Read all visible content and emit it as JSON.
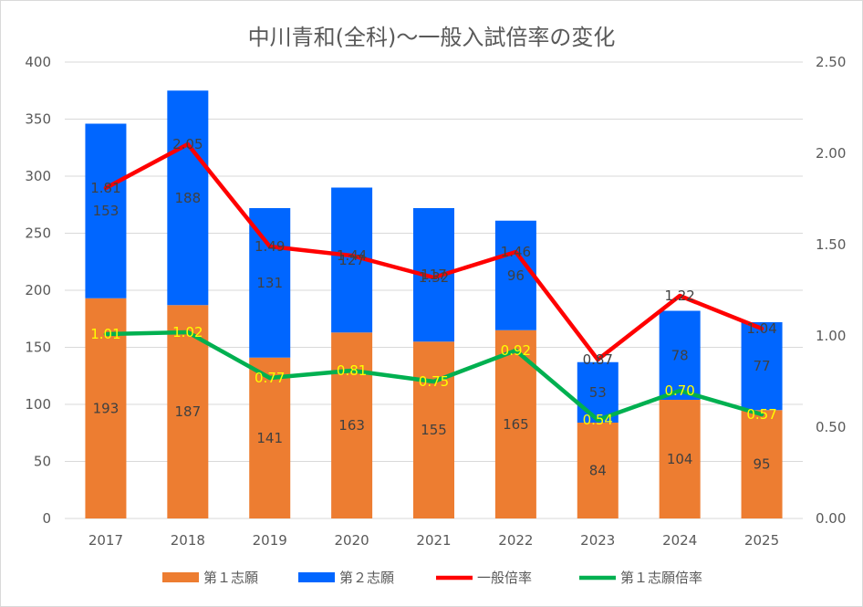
{
  "chart_data": {
    "type": "bar",
    "stacked": true,
    "title": "中川青和(全科)〜一般入試倍率の変化",
    "categories": [
      "2017",
      "2018",
      "2019",
      "2020",
      "2021",
      "2022",
      "2023",
      "2024",
      "2025"
    ],
    "ylim_left": [
      0,
      400
    ],
    "left_ticks": [
      "0",
      "50",
      "100",
      "150",
      "200",
      "250",
      "300",
      "350",
      "400"
    ],
    "ylim_right": [
      0,
      2.5
    ],
    "right_ticks": [
      "0.00",
      "0.50",
      "1.00",
      "1.50",
      "2.00",
      "2.50"
    ],
    "grid": true,
    "legend_position": "bottom",
    "series": [
      {
        "name": "第１志願",
        "kind": "bar",
        "axis": "left",
        "color": "#ed7d31",
        "values": [
          193,
          187,
          141,
          163,
          155,
          165,
          84,
          104,
          95
        ],
        "labels": [
          "193",
          "187",
          "141",
          "163",
          "155",
          "165",
          "84",
          "104",
          "95"
        ]
      },
      {
        "name": "第２志願",
        "kind": "bar",
        "axis": "left",
        "color": "#0066ff",
        "values": [
          153,
          188,
          131,
          127,
          117,
          96,
          53,
          78,
          77
        ],
        "labels": [
          "153",
          "188",
          "131",
          "127",
          "117",
          "96",
          "53",
          "78",
          "77"
        ]
      },
      {
        "name": "一般倍率",
        "kind": "line",
        "axis": "right",
        "color": "#ff0000",
        "values": [
          1.81,
          2.05,
          1.49,
          1.44,
          1.32,
          1.46,
          0.87,
          1.22,
          1.04
        ],
        "labels": [
          "1.81",
          "2.05",
          "1.49",
          "1.44",
          "1.32",
          "1.46",
          "0.87",
          "1.22",
          "1.04"
        ]
      },
      {
        "name": "第１志願倍率",
        "kind": "line",
        "axis": "right",
        "color": "#00b050",
        "values": [
          1.01,
          1.02,
          0.77,
          0.81,
          0.75,
          0.92,
          0.54,
          0.7,
          0.57
        ],
        "labels": [
          "1.01",
          "1.02",
          "0.77",
          "0.81",
          "0.75",
          "0.92",
          "0.54",
          "0.70",
          "0.57"
        ]
      }
    ]
  }
}
